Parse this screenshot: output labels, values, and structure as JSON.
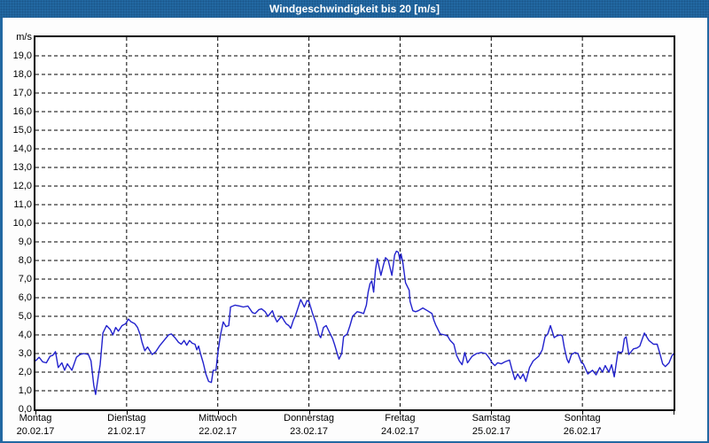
{
  "window": {
    "title": "Windgeschwindigkeit bis 20 [m/s]"
  },
  "colors": {
    "titlebar": "#2268a2",
    "frame": "#2268a2",
    "line": "#2222cd",
    "grid": "#000000",
    "plot_background": "#ffffff",
    "page_background": "#fdfdfd",
    "label_text": "#000000",
    "title_text": "#ffffff"
  },
  "chart_data": {
    "type": "line",
    "title": "Windgeschwindigkeit bis 20 [m/s]",
    "ylabel": "m/s",
    "ylim": [
      0,
      20
    ],
    "ytick_step": 1.0,
    "ytick_labels_top_to_bottom": [
      "m/s",
      "19,0",
      "18,0",
      "17,0",
      "16,0",
      "15,0",
      "14,0",
      "13,0",
      "12,0",
      "11,0",
      "10,0",
      "9,0",
      "8,0",
      "7,0",
      "6,0",
      "5,0",
      "4,0",
      "3,0",
      "2,0",
      "1,0",
      "0,0"
    ],
    "grid": "dashed",
    "legend": "none",
    "x_axis_days": [
      {
        "name": "Montag",
        "date": "20.02.17"
      },
      {
        "name": "Dienstag",
        "date": "21.02.17"
      },
      {
        "name": "Mittwoch",
        "date": "22.02.17"
      },
      {
        "name": "Donnerstag",
        "date": "23.02.17"
      },
      {
        "name": "Freitag",
        "date": "24.02.17"
      },
      {
        "name": "Samstag",
        "date": "25.02.17"
      },
      {
        "name": "Sonntag",
        "date": "26.02.17"
      }
    ],
    "series": [
      {
        "name": "Windgeschwindigkeit",
        "unit": "m/s",
        "x_unit": "days_from_monday_2017-02-20",
        "points": [
          [
            0.0,
            2.6
          ],
          [
            0.04,
            2.8
          ],
          [
            0.08,
            2.55
          ],
          [
            0.12,
            2.5
          ],
          [
            0.16,
            2.85
          ],
          [
            0.19,
            2.9
          ],
          [
            0.22,
            3.1
          ],
          [
            0.25,
            2.25
          ],
          [
            0.29,
            2.5
          ],
          [
            0.32,
            2.1
          ],
          [
            0.35,
            2.45
          ],
          [
            0.4,
            2.1
          ],
          [
            0.45,
            2.8
          ],
          [
            0.49,
            2.95
          ],
          [
            0.53,
            3.0
          ],
          [
            0.58,
            2.95
          ],
          [
            0.61,
            2.6
          ],
          [
            0.64,
            1.3
          ],
          [
            0.66,
            0.8
          ],
          [
            0.69,
            1.8
          ],
          [
            0.71,
            2.4
          ],
          [
            0.74,
            4.1
          ],
          [
            0.78,
            4.5
          ],
          [
            0.82,
            4.3
          ],
          [
            0.85,
            4.0
          ],
          [
            0.88,
            4.4
          ],
          [
            0.91,
            4.2
          ],
          [
            0.95,
            4.5
          ],
          [
            0.99,
            4.6
          ],
          [
            1.02,
            4.85
          ],
          [
            1.05,
            4.7
          ],
          [
            1.09,
            4.6
          ],
          [
            1.12,
            4.4
          ],
          [
            1.15,
            4.0
          ],
          [
            1.17,
            3.6
          ],
          [
            1.2,
            3.15
          ],
          [
            1.23,
            3.35
          ],
          [
            1.28,
            2.95
          ],
          [
            1.32,
            3.1
          ],
          [
            1.36,
            3.4
          ],
          [
            1.41,
            3.7
          ],
          [
            1.46,
            4.0
          ],
          [
            1.49,
            4.05
          ],
          [
            1.53,
            3.85
          ],
          [
            1.57,
            3.6
          ],
          [
            1.6,
            3.5
          ],
          [
            1.63,
            3.7
          ],
          [
            1.66,
            3.45
          ],
          [
            1.69,
            3.7
          ],
          [
            1.72,
            3.55
          ],
          [
            1.75,
            3.5
          ],
          [
            1.77,
            3.2
          ],
          [
            1.79,
            3.4
          ],
          [
            1.81,
            3.0
          ],
          [
            1.84,
            2.5
          ],
          [
            1.87,
            1.9
          ],
          [
            1.9,
            1.5
          ],
          [
            1.93,
            1.45
          ],
          [
            1.95,
            2.1
          ],
          [
            1.98,
            2.1
          ],
          [
            2.0,
            3.0
          ],
          [
            2.03,
            4.0
          ],
          [
            2.06,
            4.7
          ],
          [
            2.09,
            4.45
          ],
          [
            2.12,
            4.5
          ],
          [
            2.14,
            5.5
          ],
          [
            2.19,
            5.6
          ],
          [
            2.24,
            5.55
          ],
          [
            2.28,
            5.5
          ],
          [
            2.33,
            5.55
          ],
          [
            2.38,
            5.2
          ],
          [
            2.41,
            5.15
          ],
          [
            2.45,
            5.35
          ],
          [
            2.48,
            5.4
          ],
          [
            2.52,
            5.25
          ],
          [
            2.55,
            5.0
          ],
          [
            2.6,
            5.3
          ],
          [
            2.62,
            5.0
          ],
          [
            2.65,
            4.7
          ],
          [
            2.7,
            5.0
          ],
          [
            2.73,
            4.75
          ],
          [
            2.75,
            4.6
          ],
          [
            2.78,
            4.5
          ],
          [
            2.8,
            4.35
          ],
          [
            2.83,
            4.8
          ],
          [
            2.85,
            5.0
          ],
          [
            2.89,
            5.6
          ],
          [
            2.91,
            5.9
          ],
          [
            2.95,
            5.5
          ],
          [
            2.98,
            5.85
          ],
          [
            3.0,
            5.8
          ],
          [
            3.04,
            5.15
          ],
          [
            3.08,
            4.6
          ],
          [
            3.11,
            4.0
          ],
          [
            3.13,
            3.85
          ],
          [
            3.16,
            4.4
          ],
          [
            3.19,
            4.5
          ],
          [
            3.23,
            4.1
          ],
          [
            3.26,
            3.8
          ],
          [
            3.28,
            3.5
          ],
          [
            3.31,
            3.0
          ],
          [
            3.33,
            2.7
          ],
          [
            3.36,
            3.0
          ],
          [
            3.38,
            3.9
          ],
          [
            3.42,
            4.05
          ],
          [
            3.45,
            4.5
          ],
          [
            3.48,
            5.0
          ],
          [
            3.53,
            5.25
          ],
          [
            3.57,
            5.2
          ],
          [
            3.6,
            5.15
          ],
          [
            3.63,
            5.6
          ],
          [
            3.65,
            6.3
          ],
          [
            3.67,
            6.75
          ],
          [
            3.69,
            6.9
          ],
          [
            3.71,
            6.3
          ],
          [
            3.73,
            7.5
          ],
          [
            3.75,
            8.1
          ],
          [
            3.79,
            7.2
          ],
          [
            3.82,
            7.8
          ],
          [
            3.84,
            8.15
          ],
          [
            3.87,
            8.0
          ],
          [
            3.91,
            7.2
          ],
          [
            3.94,
            8.3
          ],
          [
            3.96,
            8.5
          ],
          [
            3.98,
            8.45
          ],
          [
            4.0,
            8.0
          ],
          [
            4.01,
            8.35
          ],
          [
            4.03,
            7.9
          ],
          [
            4.06,
            6.8
          ],
          [
            4.1,
            6.4
          ],
          [
            4.11,
            5.8
          ],
          [
            4.14,
            5.3
          ],
          [
            4.17,
            5.25
          ],
          [
            4.2,
            5.3
          ],
          [
            4.25,
            5.45
          ],
          [
            4.3,
            5.3
          ],
          [
            4.35,
            5.15
          ],
          [
            4.37,
            4.8
          ],
          [
            4.39,
            4.55
          ],
          [
            4.44,
            4.05
          ],
          [
            4.49,
            4.0
          ],
          [
            4.52,
            3.95
          ],
          [
            4.55,
            3.7
          ],
          [
            4.59,
            3.5
          ],
          [
            4.62,
            2.9
          ],
          [
            4.65,
            2.6
          ],
          [
            4.68,
            2.4
          ],
          [
            4.71,
            3.05
          ],
          [
            4.74,
            2.5
          ],
          [
            4.79,
            2.85
          ],
          [
            4.84,
            3.0
          ],
          [
            4.89,
            3.05
          ],
          [
            4.94,
            3.0
          ],
          [
            4.98,
            2.75
          ],
          [
            5.01,
            2.5
          ],
          [
            5.04,
            2.35
          ],
          [
            5.07,
            2.5
          ],
          [
            5.11,
            2.45
          ],
          [
            5.15,
            2.55
          ],
          [
            5.2,
            2.65
          ],
          [
            5.23,
            2.1
          ],
          [
            5.26,
            1.6
          ],
          [
            5.29,
            1.9
          ],
          [
            5.32,
            1.65
          ],
          [
            5.35,
            1.9
          ],
          [
            5.38,
            1.5
          ],
          [
            5.42,
            2.25
          ],
          [
            5.46,
            2.6
          ],
          [
            5.52,
            2.85
          ],
          [
            5.56,
            3.2
          ],
          [
            5.59,
            3.9
          ],
          [
            5.62,
            4.05
          ],
          [
            5.65,
            4.5
          ],
          [
            5.69,
            3.85
          ],
          [
            5.72,
            3.95
          ],
          [
            5.76,
            4.0
          ],
          [
            5.78,
            3.95
          ],
          [
            5.8,
            3.35
          ],
          [
            5.83,
            2.7
          ],
          [
            5.85,
            2.5
          ],
          [
            5.88,
            2.95
          ],
          [
            5.92,
            3.05
          ],
          [
            5.95,
            3.0
          ],
          [
            5.99,
            2.5
          ],
          [
            6.01,
            2.45
          ],
          [
            6.06,
            1.9
          ],
          [
            6.11,
            2.1
          ],
          [
            6.15,
            1.85
          ],
          [
            6.19,
            2.25
          ],
          [
            6.22,
            2.0
          ],
          [
            6.25,
            2.35
          ],
          [
            6.29,
            2.0
          ],
          [
            6.32,
            2.4
          ],
          [
            6.35,
            1.75
          ],
          [
            6.39,
            3.1
          ],
          [
            6.42,
            3.05
          ],
          [
            6.44,
            3.1
          ],
          [
            6.46,
            3.8
          ],
          [
            6.48,
            3.9
          ],
          [
            6.51,
            2.95
          ],
          [
            6.56,
            3.25
          ],
          [
            6.6,
            3.3
          ],
          [
            6.63,
            3.4
          ],
          [
            6.68,
            4.1
          ],
          [
            6.73,
            3.7
          ],
          [
            6.78,
            3.5
          ],
          [
            6.82,
            3.5
          ],
          [
            6.85,
            3.0
          ],
          [
            6.88,
            2.45
          ],
          [
            6.91,
            2.3
          ],
          [
            6.95,
            2.5
          ],
          [
            6.98,
            2.85
          ],
          [
            7.0,
            3.0
          ]
        ]
      }
    ]
  }
}
